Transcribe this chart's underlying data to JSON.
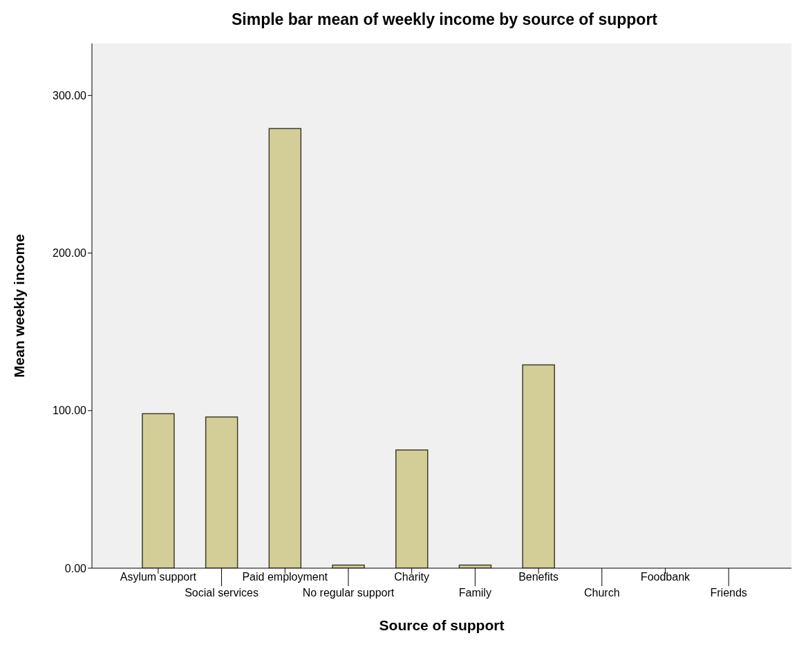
{
  "chart_data": {
    "type": "bar",
    "title": "Simple bar mean of weekly income by source of support",
    "xlabel": "Source of support",
    "ylabel": "Mean weekly income",
    "categories": [
      "Asylum support",
      "Social services",
      "Paid employment",
      "No regular support",
      "Charity",
      "Family",
      "Benefits",
      "Church",
      "Foodbank",
      "Friends"
    ],
    "values": [
      98,
      96,
      279,
      2,
      75,
      2,
      129,
      0,
      0,
      0
    ],
    "color": "#d3ce97",
    "ylim": [
      0,
      333
    ],
    "yticks": [
      {
        "value": 0,
        "label": "0.00"
      },
      {
        "value": 100,
        "label": "100.00"
      },
      {
        "value": 200,
        "label": "200.00"
      },
      {
        "value": 300,
        "label": "300.00"
      }
    ],
    "grid": false
  }
}
